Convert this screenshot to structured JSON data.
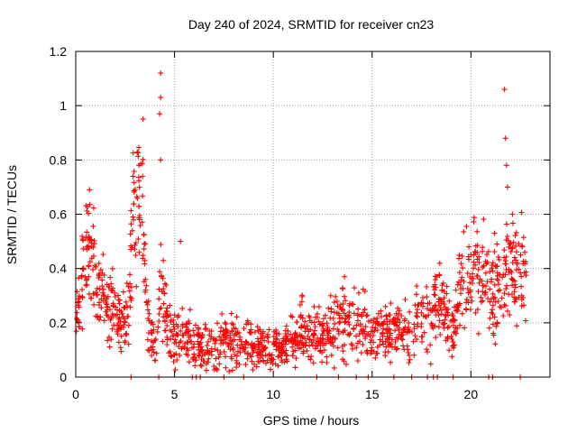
{
  "chart_data": {
    "type": "scatter",
    "title": "Day 240 of 2024, SRMTID for receiver cn23",
    "xlabel": "GPS time / hours",
    "ylabel": "SRMTID / TECUs",
    "xlim": [
      0,
      24
    ],
    "ylim": [
      0,
      1.2
    ],
    "x_ticks": [
      0,
      5,
      10,
      15,
      20
    ],
    "x_tick_labels": [
      "0",
      "5",
      "10",
      "15",
      "20"
    ],
    "y_ticks": [
      0,
      0.2,
      0.4,
      0.6,
      0.8,
      1.0,
      1.2
    ],
    "y_tick_labels": [
      "0",
      "0.2",
      "0.4",
      "0.6",
      "0.8",
      "1",
      "1.2"
    ],
    "grid": true,
    "marker": "+",
    "color": "#ff0000",
    "envelope_note": "approximate typical SRMTID level vs time (hours, TECU) read from the plot",
    "envelope": [
      [
        0.0,
        0.2
      ],
      [
        0.3,
        0.32
      ],
      [
        0.5,
        0.42
      ],
      [
        0.7,
        0.5
      ],
      [
        0.9,
        0.38
      ],
      [
        1.2,
        0.33
      ],
      [
        1.6,
        0.28
      ],
      [
        2.0,
        0.24
      ],
      [
        2.4,
        0.2
      ],
      [
        2.7,
        0.25
      ],
      [
        2.9,
        0.55
      ],
      [
        3.1,
        0.68
      ],
      [
        3.4,
        0.6
      ],
      [
        3.6,
        0.28
      ],
      [
        3.8,
        0.15
      ],
      [
        4.1,
        0.16
      ],
      [
        4.3,
        0.35
      ],
      [
        4.6,
        0.2
      ],
      [
        5.0,
        0.15
      ],
      [
        5.5,
        0.16
      ],
      [
        6.0,
        0.12
      ],
      [
        6.5,
        0.12
      ],
      [
        7.0,
        0.11
      ],
      [
        7.5,
        0.13
      ],
      [
        8.0,
        0.13
      ],
      [
        8.5,
        0.14
      ],
      [
        9.0,
        0.12
      ],
      [
        9.5,
        0.11
      ],
      [
        10.0,
        0.1
      ],
      [
        10.5,
        0.11
      ],
      [
        11.0,
        0.13
      ],
      [
        11.5,
        0.18
      ],
      [
        12.0,
        0.15
      ],
      [
        12.5,
        0.15
      ],
      [
        13.0,
        0.18
      ],
      [
        13.5,
        0.2
      ],
      [
        14.0,
        0.2
      ],
      [
        14.5,
        0.19
      ],
      [
        15.0,
        0.17
      ],
      [
        15.5,
        0.18
      ],
      [
        16.0,
        0.16
      ],
      [
        16.5,
        0.15
      ],
      [
        17.0,
        0.15
      ],
      [
        17.5,
        0.22
      ],
      [
        18.0,
        0.2
      ],
      [
        18.3,
        0.3
      ],
      [
        18.7,
        0.24
      ],
      [
        19.1,
        0.15
      ],
      [
        19.4,
        0.3
      ],
      [
        19.8,
        0.4
      ],
      [
        20.2,
        0.42
      ],
      [
        20.5,
        0.4
      ],
      [
        20.8,
        0.35
      ],
      [
        21.2,
        0.3
      ],
      [
        21.6,
        0.33
      ],
      [
        22.0,
        0.45
      ],
      [
        22.4,
        0.38
      ],
      [
        22.8,
        0.4
      ]
    ],
    "peaks": [
      {
        "x": 0.7,
        "y": 0.69
      },
      {
        "x": 2.9,
        "y": 0.74
      },
      {
        "x": 3.2,
        "y": 0.78
      },
      {
        "x": 4.3,
        "y": 1.12
      },
      {
        "x": 4.3,
        "y": 1.03
      },
      {
        "x": 4.25,
        "y": 0.97
      },
      {
        "x": 4.3,
        "y": 0.8
      },
      {
        "x": 5.3,
        "y": 0.5
      },
      {
        "x": 13.6,
        "y": 0.37
      },
      {
        "x": 19.9,
        "y": 0.48
      },
      {
        "x": 21.2,
        "y": 0.53
      },
      {
        "x": 21.7,
        "y": 1.06
      },
      {
        "x": 21.75,
        "y": 0.88
      },
      {
        "x": 21.8,
        "y": 0.78
      },
      {
        "x": 21.85,
        "y": 0.7
      },
      {
        "x": 22.1,
        "y": 0.6
      }
    ],
    "zero_markers_x": [
      2.8,
      4.2,
      5.9,
      6.1,
      6.3,
      7.5,
      8.5,
      12.2,
      13.3,
      14.2,
      14.8,
      16.1,
      17.0,
      17.8,
      18.1,
      18.3,
      19.1,
      20.9,
      21.1,
      22.5
    ]
  }
}
